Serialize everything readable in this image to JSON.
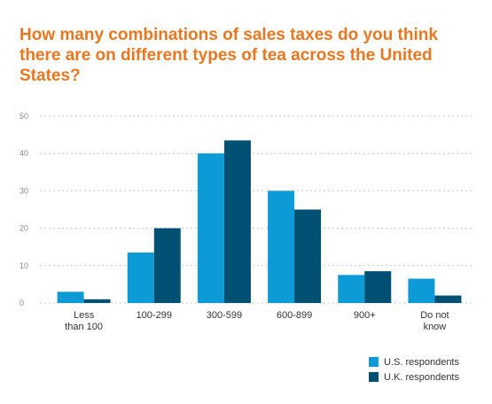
{
  "chart_data": {
    "type": "bar",
    "title": "How many combinations of sales taxes do you think there are on different types of tea across the United States?",
    "categories": [
      [
        "Less",
        "than 100"
      ],
      [
        "100-299"
      ],
      [
        "300-599"
      ],
      [
        "600-899"
      ],
      [
        "900+"
      ],
      [
        "Do not",
        "know"
      ]
    ],
    "series": [
      {
        "name": "U.S. respondents",
        "color": "#0c9bd6",
        "values": [
          3,
          13.5,
          40,
          30,
          7.5,
          6.5
        ]
      },
      {
        "name": "U.K. respondents",
        "color": "#005073",
        "values": [
          1,
          20,
          43.5,
          25,
          8.5,
          2
        ]
      }
    ],
    "yticks": [
      "0",
      "10",
      "20",
      "30",
      "40",
      "50"
    ],
    "ylim": [
      0,
      50
    ],
    "grid": true,
    "legend_position": "bottom-right"
  }
}
